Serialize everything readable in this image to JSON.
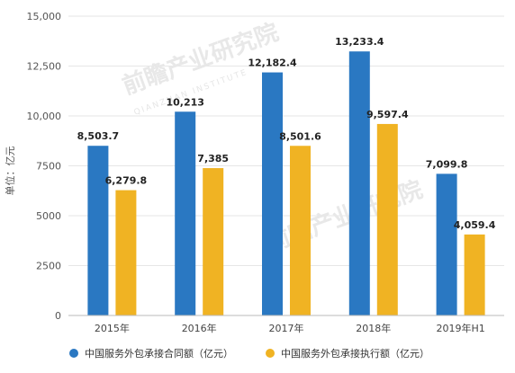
{
  "chart_data": {
    "type": "bar",
    "categories": [
      "2015年",
      "2016年",
      "2017年",
      "2018年",
      "2019年H1"
    ],
    "series": [
      {
        "name": "中国服务外包承接合同额（亿元）",
        "color": "#2a78c2",
        "values": [
          8503.7,
          10213,
          12182.4,
          13233.4,
          7099.8
        ],
        "labels": [
          "8,503.7",
          "10,213",
          "12,182.4",
          "13,233.4",
          "7,099.8"
        ]
      },
      {
        "name": "中国服务外包承接执行额（亿元）",
        "color": "#f0b323",
        "values": [
          6279.8,
          7385,
          8501.6,
          9597.4,
          4059.4
        ],
        "labels": [
          "6,279.8",
          "7,385",
          "8,501.6",
          "9,597.4",
          "4,059.4"
        ]
      }
    ],
    "ylabel": "单位：亿元",
    "ylim": [
      0,
      15000
    ],
    "yticks": [
      0,
      2500,
      5000,
      7500,
      10000,
      12500,
      15000
    ],
    "ytick_labels": [
      "0",
      "2500",
      "5000",
      "7500",
      "10,000",
      "12,500",
      "15,000"
    ],
    "grid": true,
    "legend_position": "bottom"
  },
  "watermark": {
    "text": "前瞻产业研究院",
    "subtext": "QIANZHAN INSTITUTE"
  }
}
